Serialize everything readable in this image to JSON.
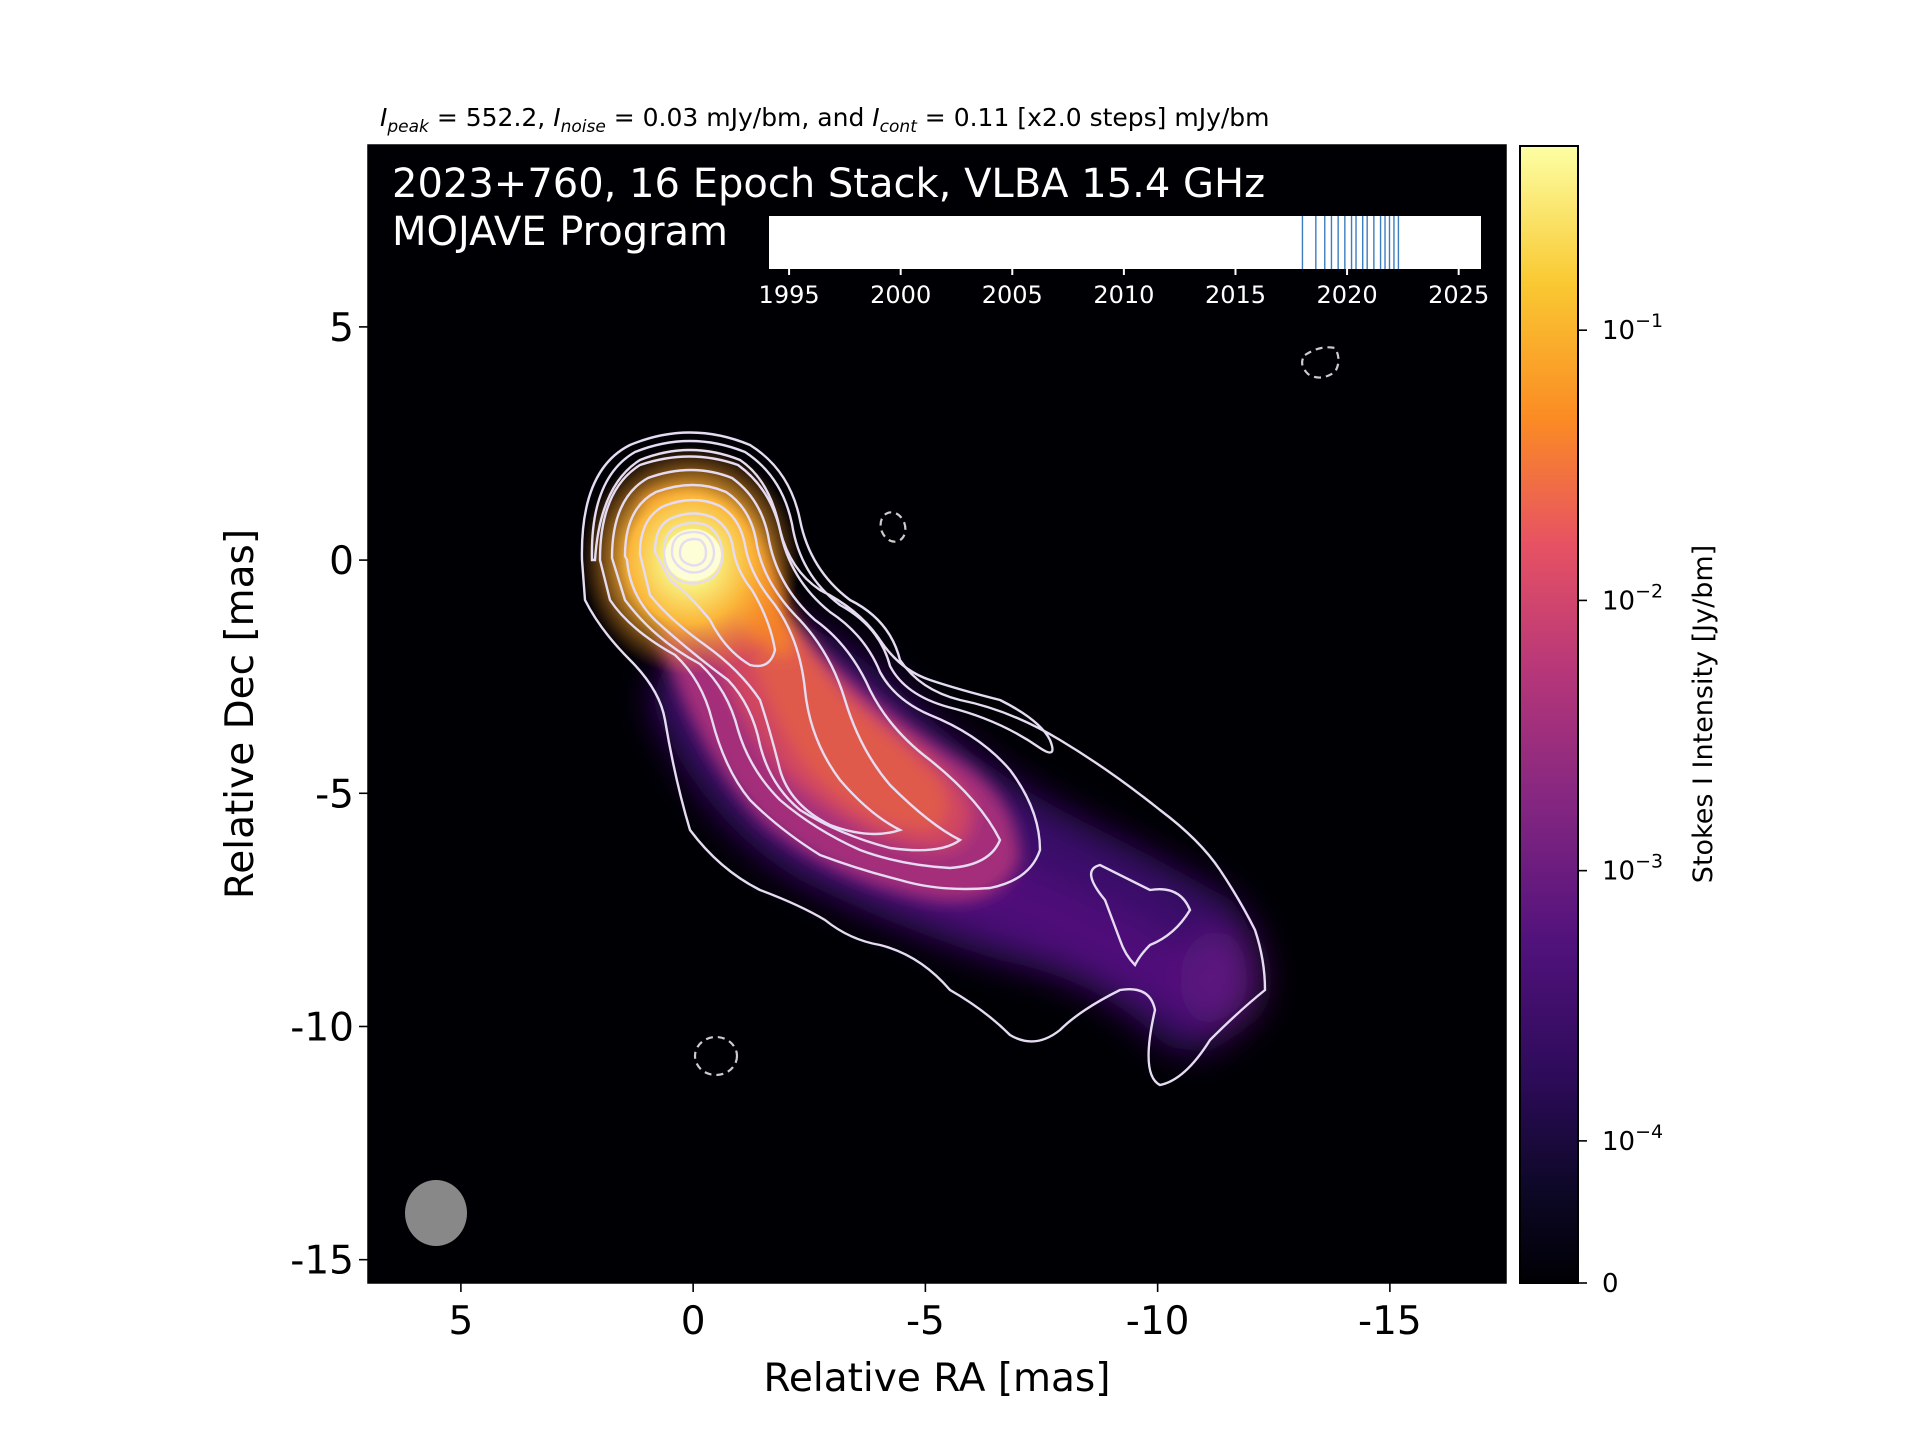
{
  "header": {
    "peak_sym": "I",
    "peak_sub": "peak",
    "peak_text": " = 552.2, ",
    "noise_sym": "I",
    "noise_sub": "noise",
    "noise_text": " = 0.03 mJy/bm, and ",
    "cont_sym": "I",
    "cont_sub": "cont",
    "cont_text": " = 0.11 [x2.0 steps] mJy/bm"
  },
  "map_title_line1": "2023+760, 16 Epoch Stack, VLBA 15.4 GHz",
  "map_title_line2": "MOJAVE Program",
  "chart_data": {
    "type": "heatmap",
    "subtype": "radio-intensity-map-with-contours",
    "xlabel": "Relative RA [mas]",
    "ylabel": "Relative Dec [mas]",
    "x_ticks": [
      "5",
      "0",
      "-5",
      "-10",
      "-15"
    ],
    "y_ticks": [
      "5",
      "0",
      "-5",
      "-10",
      "-15"
    ],
    "xlim": [
      7.0,
      -17.5
    ],
    "ylim": [
      -15.5,
      8.9
    ],
    "grid": false,
    "colormap": "inferno",
    "colorbar": {
      "label": "Stokes I Intensity [Jy/bm]",
      "scale": "log",
      "ticks": [
        {
          "value": 0,
          "label": "0"
        },
        {
          "value": 0.0001,
          "label": "10",
          "exp": "−4"
        },
        {
          "value": 0.001,
          "label": "10",
          "exp": "−3"
        },
        {
          "value": 0.01,
          "label": "10",
          "exp": "−2"
        },
        {
          "value": 0.1,
          "label": "10",
          "exp": "−1"
        }
      ]
    },
    "peak_position": [
      0.0,
      0.0
    ],
    "beam_position": [
      5.2,
      -14.2
    ],
    "negative_contours": [
      [
        -4.3,
        0.5
      ],
      [
        -13.5,
        4.1
      ],
      [
        -0.4,
        -10.9
      ]
    ],
    "epoch_timeline": {
      "x_ticks": [
        "1995",
        "2000",
        "2005",
        "2010",
        "2015",
        "2020",
        "2025"
      ],
      "xlim": [
        1994.1,
        2026.0
      ],
      "epochs": [
        2018.0,
        2018.6,
        2019.0,
        2019.3,
        2019.6,
        2019.9,
        2020.2,
        2020.4,
        2020.7,
        2020.9,
        2021.2,
        2021.5,
        2021.7,
        2021.9,
        2022.1,
        2022.3
      ]
    }
  },
  "colors": {
    "map_bg": "#000004",
    "contour": "#e6dcf2",
    "negative_contour": "#cccccc",
    "epoch_line": "#3b7dbf",
    "beam": "#888888"
  }
}
